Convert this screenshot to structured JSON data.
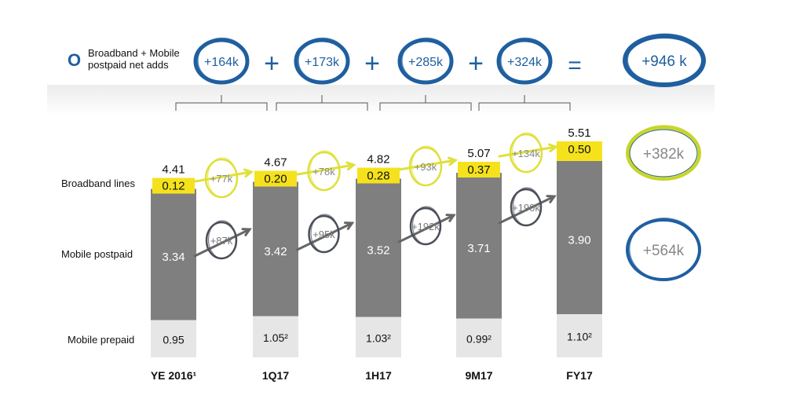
{
  "legend": {
    "label": "Broadband + Mobile postpaid net adds",
    "marker": "O"
  },
  "top_row": {
    "adds": [
      "+164k",
      "+173k",
      "+285k",
      "+324k"
    ],
    "operators": [
      "+",
      "+",
      "+",
      "="
    ],
    "total": "+946 k"
  },
  "side_totals": {
    "broadband": "+382k",
    "postpaid": "+564k"
  },
  "colors": {
    "prepaid": "#e6e6e6",
    "postpaid": "#7f7f7f",
    "broadband": "#f5e21c",
    "circle_blue": "#1f5fa0",
    "circle_yellow": "#dfe03a",
    "circle_gray": "#4a4f5a"
  },
  "chart_data": {
    "type": "bar",
    "stacked": true,
    "categories": [
      "YE 2016¹",
      "1Q17",
      "1H17",
      "9M17",
      "FY17"
    ],
    "series": [
      {
        "name": "Mobile prepaid",
        "values": [
          0.95,
          1.05,
          1.03,
          0.99,
          1.1
        ],
        "labels": [
          "0.95",
          "1.05²",
          "1.03²",
          "0.99²",
          "1.10²"
        ]
      },
      {
        "name": "Mobile postpaid",
        "values": [
          3.34,
          3.42,
          3.52,
          3.71,
          3.9
        ],
        "labels": [
          "3.34",
          "3.42",
          "3.52",
          "3.71",
          "3.90"
        ]
      },
      {
        "name": "Broadband lines",
        "values": [
          0.12,
          0.2,
          0.28,
          0.37,
          0.5
        ],
        "labels": [
          "0.12",
          "0.20",
          "0.28",
          "0.37",
          "0.50"
        ]
      }
    ],
    "totals": [
      "4.41",
      "4.67",
      "4.82",
      "5.07",
      "5.51"
    ],
    "broadband_adds": [
      "+77k",
      "+78k",
      "+93k",
      "+134k"
    ],
    "postpaid_adds": [
      "+87k",
      "+95k",
      "+192k",
      "+190k"
    ],
    "grid": false,
    "legend": "left"
  }
}
